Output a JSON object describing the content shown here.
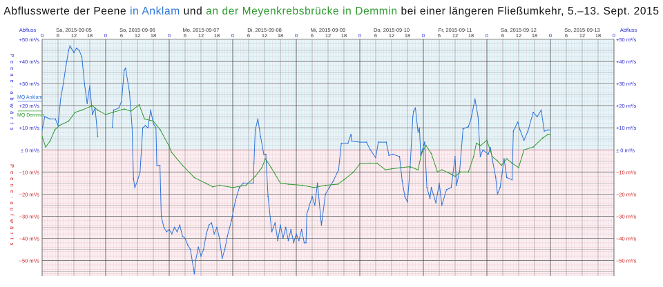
{
  "title": {
    "part1": "Abflusswerte der Peene ",
    "anklam": "in Anklam",
    "part2": " und ",
    "demmin": "an der Meyenkrebsbrücke in Demmin",
    "part3": " bei einer längeren Fließumkehr, 5.–13. Sept. 2015"
  },
  "chart_data": {
    "type": "line",
    "title": "Abflusswerte der Peene in Anklam und an der Meyenkrebsbrücke in Demmin bei einer längeren Fließumkehr, 5.–13. Sept. 2015",
    "ylabel_left": "Abfluss",
    "ylabel_right": "Abfluss",
    "side_label_positive": "Peene-abwärts",
    "side_label_negative": "Peene-aufwärts",
    "xlim": [
      "2015-09-05T00:00",
      "2015-09-14T00:00"
    ],
    "ylim": [
      -57,
      50
    ],
    "unit": "m³/s",
    "grid": true,
    "day_labels": [
      "Sa, 2015-09-05",
      "So, 2015-09-06",
      "Mo, 2015-09-07",
      "Di, 2015-09-08",
      "Mi, 2015-09-09",
      "Do, 2015-09-10",
      "Fr, 2015-09-11",
      "Sa, 2015-09-12",
      "So, 2015-09-13"
    ],
    "hour_ticks": [
      "0",
      "6",
      "12",
      "18"
    ],
    "y_ticks": [
      {
        "v": 50,
        "label": "+50 m³/s"
      },
      {
        "v": 40,
        "label": "+40 m³/s"
      },
      {
        "v": 30,
        "label": "+30 m³/s"
      },
      {
        "v": 20,
        "label": "+20 m³/s"
      },
      {
        "v": 10,
        "label": "+10 m³/s"
      },
      {
        "v": 0,
        "label": "± 0 m³/s"
      },
      {
        "v": -10,
        "label": "−10 m³/s"
      },
      {
        "v": -20,
        "label": "−20 m³/s"
      },
      {
        "v": -30,
        "label": "−30 m³/s"
      },
      {
        "v": -40,
        "label": "−40 m³/s"
      },
      {
        "v": -50,
        "label": "−50 m³/s"
      }
    ],
    "reference_lines": [
      {
        "name": "MQ Anklam",
        "value": 22,
        "color": "#2a72d8"
      },
      {
        "name": "MQ Demmin",
        "value": 17.6,
        "color": "#2e9a2e"
      }
    ],
    "colors": {
      "positive_bg": "#e8f5f9",
      "negative_bg": "#fdeef1",
      "positive_text": "#2a2ad0",
      "negative_text": "#d02020"
    },
    "series": [
      {
        "name": "Anklam",
        "color": "#2a72d8",
        "points": [
          [
            "2015-09-05T00:00",
            9
          ],
          [
            "2015-09-05T01:00",
            15
          ],
          [
            "2015-09-05T03:00",
            14
          ],
          [
            "2015-09-05T05:00",
            14
          ],
          [
            "2015-09-05T06:00",
            11
          ],
          [
            "2015-09-05T07:00",
            23
          ],
          [
            "2015-09-05T08:00",
            30
          ],
          [
            "2015-09-05T09:00",
            38
          ],
          [
            "2015-09-05T10:00",
            45
          ],
          [
            "2015-09-05T10:30",
            47
          ],
          [
            "2015-09-05T11:00",
            46
          ],
          [
            "2015-09-05T12:00",
            44
          ],
          [
            "2015-09-05T13:00",
            46
          ],
          [
            "2015-09-05T14:00",
            45
          ],
          [
            "2015-09-05T15:00",
            42
          ],
          [
            "2015-09-05T16:00",
            30
          ],
          [
            "2015-09-05T17:00",
            21
          ],
          [
            "2015-09-05T18:00",
            29
          ],
          [
            "2015-09-05T19:00",
            16
          ],
          [
            "2015-09-05T20:00",
            19
          ],
          [
            "2015-09-05T21:00",
            6
          ],
          [
            "2015-09-06T00:00",
            null
          ],
          [
            "2015-09-06T02:30",
            10
          ],
          [
            "2015-09-06T03:00",
            18
          ],
          [
            "2015-09-06T05:00",
            19
          ],
          [
            "2015-09-06T06:00",
            22
          ],
          [
            "2015-09-06T07:00",
            36
          ],
          [
            "2015-09-06T07:30",
            37
          ],
          [
            "2015-09-06T09:00",
            26
          ],
          [
            "2015-09-06T10:00",
            10
          ],
          [
            "2015-09-06T10:30",
            -13
          ],
          [
            "2015-09-06T11:00",
            -17
          ],
          [
            "2015-09-06T12:00",
            -14
          ],
          [
            "2015-09-06T13:00",
            -10
          ],
          [
            "2015-09-06T14:00",
            10
          ],
          [
            "2015-09-06T15:00",
            11
          ],
          [
            "2015-09-06T16:00",
            10
          ],
          [
            "2015-09-06T17:00",
            18
          ],
          [
            "2015-09-06T18:00",
            12
          ],
          [
            "2015-09-06T19:00",
            10
          ],
          [
            "2015-09-06T19:20",
            -7
          ],
          [
            "2015-09-06T20:30",
            -7
          ],
          [
            "2015-09-06T21:00",
            -30
          ],
          [
            "2015-09-06T22:00",
            -35
          ],
          [
            "2015-09-06T23:00",
            -37
          ],
          [
            "2015-09-07T00:00",
            -36
          ],
          [
            "2015-09-07T01:00",
            -38
          ],
          [
            "2015-09-07T02:00",
            -35
          ],
          [
            "2015-09-07T03:00",
            -37
          ],
          [
            "2015-09-07T04:00",
            -34
          ],
          [
            "2015-09-07T05:00",
            -39
          ],
          [
            "2015-09-07T06:00",
            -40
          ],
          [
            "2015-09-07T07:00",
            -43
          ],
          [
            "2015-09-07T08:00",
            -45
          ],
          [
            "2015-09-07T09:30",
            -56
          ],
          [
            "2015-09-07T10:00",
            -50
          ],
          [
            "2015-09-07T11:00",
            -44
          ],
          [
            "2015-09-07T12:00",
            -48
          ],
          [
            "2015-09-07T13:00",
            -45
          ],
          [
            "2015-09-07T14:00",
            -38
          ],
          [
            "2015-09-07T15:00",
            -34
          ],
          [
            "2015-09-07T16:00",
            -33
          ],
          [
            "2015-09-07T17:00",
            -38
          ],
          [
            "2015-09-07T18:00",
            -35
          ],
          [
            "2015-09-07T19:00",
            -40
          ],
          [
            "2015-09-07T20:00",
            -49
          ],
          [
            "2015-09-07T21:00",
            -45
          ],
          [
            "2015-09-07T22:00",
            -39
          ],
          [
            "2015-09-07T23:30",
            -32
          ],
          [
            "2015-09-08T01:00",
            -23
          ],
          [
            "2015-09-08T02:30",
            -17
          ],
          [
            "2015-09-08T04:00",
            -15
          ],
          [
            "2015-09-08T06:00",
            -15
          ],
          [
            "2015-09-08T07:45",
            -15
          ],
          [
            "2015-09-08T08:00",
            -6
          ],
          [
            "2015-09-08T08:30",
            9
          ],
          [
            "2015-09-08T09:30",
            14
          ],
          [
            "2015-09-08T10:30",
            6
          ],
          [
            "2015-09-08T11:45",
            -2
          ],
          [
            "2015-09-08T12:30",
            -2
          ],
          [
            "2015-09-08T13:20",
            -21
          ],
          [
            "2015-09-08T14:45",
            -37
          ],
          [
            "2015-09-08T16:00",
            -33
          ],
          [
            "2015-09-08T17:00",
            -41
          ],
          [
            "2015-09-08T18:00",
            -34
          ],
          [
            "2015-09-08T19:00",
            -40
          ],
          [
            "2015-09-08T20:00",
            -35
          ],
          [
            "2015-09-08T21:00",
            -41
          ],
          [
            "2015-09-08T22:00",
            -36
          ],
          [
            "2015-09-08T23:00",
            -42
          ],
          [
            "2015-09-09T00:00",
            -38
          ],
          [
            "2015-09-09T01:00",
            -41
          ],
          [
            "2015-09-09T02:00",
            -36
          ],
          [
            "2015-09-09T03:00",
            -42
          ],
          [
            "2015-09-09T03:40",
            -42
          ],
          [
            "2015-09-09T04:00",
            -29
          ],
          [
            "2015-09-09T06:00",
            -21
          ],
          [
            "2015-09-09T07:00",
            -25
          ],
          [
            "2015-09-09T08:00",
            -15
          ],
          [
            "2015-09-09T09:30",
            -34
          ],
          [
            "2015-09-09T11:00",
            -20
          ],
          [
            "2015-09-09T12:30",
            -17
          ],
          [
            "2015-09-09T14:00",
            -14
          ],
          [
            "2015-09-09T16:00",
            -9
          ],
          [
            "2015-09-09T17:00",
            3
          ],
          [
            "2015-09-09T19:30",
            3
          ],
          [
            "2015-09-09T20:40",
            7
          ],
          [
            "2015-09-09T21:00",
            4
          ],
          [
            "2015-09-10T00:00",
            3.5
          ],
          [
            "2015-09-10T02:30",
            3.5
          ],
          [
            "2015-09-10T04:00",
            0
          ],
          [
            "2015-09-10T06:00",
            -3.5
          ],
          [
            "2015-09-10T07:00",
            3.5
          ],
          [
            "2015-09-10T10:00",
            3.5
          ],
          [
            "2015-09-10T11:00",
            -2.5
          ],
          [
            "2015-09-10T12:30",
            -2
          ],
          [
            "2015-09-10T15:00",
            -3
          ],
          [
            "2015-09-10T16:00",
            -14
          ],
          [
            "2015-09-10T17:00",
            -21
          ],
          [
            "2015-09-10T18:00",
            -23.6
          ],
          [
            "2015-09-10T19:00",
            -8
          ],
          [
            "2015-09-10T20:00",
            15
          ],
          [
            "2015-09-10T20:20",
            17.5
          ],
          [
            "2015-09-10T21:00",
            19
          ],
          [
            "2015-09-10T22:00",
            8
          ],
          [
            "2015-09-10T22:30",
            10
          ],
          [
            "2015-09-10T23:00",
            -2.5
          ],
          [
            "2015-09-11T00:30",
            3.5
          ],
          [
            "2015-09-11T01:20",
            -17
          ],
          [
            "2015-09-11T02:30",
            -22
          ],
          [
            "2015-09-11T03:00",
            -17
          ],
          [
            "2015-09-11T04:45",
            -24
          ],
          [
            "2015-09-11T06:00",
            -15
          ],
          [
            "2015-09-11T07:00",
            -25
          ],
          [
            "2015-09-11T08:45",
            -18
          ],
          [
            "2015-09-11T10:30",
            -17
          ],
          [
            "2015-09-11T12:00",
            -3
          ],
          [
            "2015-09-11T12:30",
            -16
          ],
          [
            "2015-09-11T13:40",
            -10
          ],
          [
            "2015-09-11T15:00",
            9.5
          ],
          [
            "2015-09-11T17:00",
            10.5
          ],
          [
            "2015-09-11T18:00",
            14
          ],
          [
            "2015-09-11T19:30",
            23
          ],
          [
            "2015-09-11T20:40",
            15
          ],
          [
            "2015-09-11T21:30",
            -3
          ],
          [
            "2015-09-11T22:30",
            0
          ],
          [
            "2015-09-12T00:30",
            -2
          ],
          [
            "2015-09-12T01:20",
            1
          ],
          [
            "2015-09-12T02:00",
            -4
          ],
          [
            "2015-09-12T03:20",
            -12.5
          ],
          [
            "2015-09-12T04:00",
            -20
          ],
          [
            "2015-09-12T05:00",
            -17
          ],
          [
            "2015-09-12T06:30",
            -4
          ],
          [
            "2015-09-12T07:30",
            -12.5
          ],
          [
            "2015-09-12T09:30",
            -13.5
          ],
          [
            "2015-09-12T10:00",
            8.5
          ],
          [
            "2015-09-12T11:40",
            12.6
          ],
          [
            "2015-09-12T12:30",
            9
          ],
          [
            "2015-09-12T14:00",
            4.4
          ],
          [
            "2015-09-12T15:30",
            8.5
          ],
          [
            "2015-09-12T17:30",
            17
          ],
          [
            "2015-09-12T19:00",
            15
          ],
          [
            "2015-09-12T20:30",
            18
          ],
          [
            "2015-09-12T21:40",
            8.5
          ],
          [
            "2015-09-12T23:00",
            9
          ],
          [
            "2015-09-13T00:00",
            9
          ]
        ]
      },
      {
        "name": "Demmin",
        "color": "#2e9a2e",
        "points": [
          [
            "2015-09-05T00:00",
            6
          ],
          [
            "2015-09-05T01:20",
            1.3
          ],
          [
            "2015-09-05T03:00",
            4
          ],
          [
            "2015-09-05T04:45",
            9
          ],
          [
            "2015-09-05T06:30",
            11
          ],
          [
            "2015-09-05T10:00",
            13
          ],
          [
            "2015-09-05T12:30",
            17
          ],
          [
            "2015-09-05T15:00",
            18
          ],
          [
            "2015-09-05T19:00",
            20
          ],
          [
            "2015-09-05T21:00",
            18
          ],
          [
            "2015-09-06T00:00",
            16
          ],
          [
            "2015-09-06T02:40",
            17
          ],
          [
            "2015-09-06T07:00",
            18.5
          ],
          [
            "2015-09-06T09:30",
            17.5
          ],
          [
            "2015-09-06T12:40",
            20.4
          ],
          [
            "2015-09-06T14:40",
            14
          ],
          [
            "2015-09-06T18:00",
            13
          ],
          [
            "2015-09-06T20:40",
            9
          ],
          [
            "2015-09-07T00:00",
            1.6
          ],
          [
            "2015-09-07T00:50",
            -1
          ],
          [
            "2015-09-07T05:00",
            -7
          ],
          [
            "2015-09-07T09:30",
            -12.5
          ],
          [
            "2015-09-07T13:40",
            -15
          ],
          [
            "2015-09-07T16:30",
            -16.7
          ],
          [
            "2015-09-07T19:00",
            -16
          ],
          [
            "2015-09-08T00:00",
            -17
          ],
          [
            "2015-09-08T05:00",
            -16
          ],
          [
            "2015-09-08T08:30",
            -12
          ],
          [
            "2015-09-08T11:00",
            -8
          ],
          [
            "2015-09-08T12:20",
            -4
          ],
          [
            "2015-09-08T14:30",
            -8
          ],
          [
            "2015-09-08T18:00",
            -15
          ],
          [
            "2015-09-08T21:00",
            -15.5
          ],
          [
            "2015-09-09T02:20",
            -16
          ],
          [
            "2015-09-09T06:40",
            -17
          ],
          [
            "2015-09-09T11:00",
            -16
          ],
          [
            "2015-09-09T15:40",
            -15.5
          ],
          [
            "2015-09-09T18:00",
            -13.5
          ],
          [
            "2015-09-09T21:40",
            -10
          ],
          [
            "2015-09-10T00:00",
            -6.3
          ],
          [
            "2015-09-10T03:30",
            -6
          ],
          [
            "2015-09-10T06:30",
            -6
          ],
          [
            "2015-09-10T09:40",
            -9
          ],
          [
            "2015-09-10T12:00",
            -8.6
          ],
          [
            "2015-09-10T15:40",
            -8
          ],
          [
            "2015-09-10T19:00",
            -7.6
          ],
          [
            "2015-09-10T22:00",
            -9
          ],
          [
            "2015-09-10T23:20",
            -1.6
          ],
          [
            "2015-09-11T01:00",
            2
          ],
          [
            "2015-09-11T03:00",
            -1.6
          ],
          [
            "2015-09-11T05:20",
            -10
          ],
          [
            "2015-09-11T07:00",
            -9
          ],
          [
            "2015-09-11T10:30",
            -11
          ],
          [
            "2015-09-11T12:00",
            -12
          ],
          [
            "2015-09-11T14:00",
            -10
          ],
          [
            "2015-09-11T17:00",
            -10
          ],
          [
            "2015-09-11T19:00",
            -3
          ],
          [
            "2015-09-11T20:00",
            3
          ],
          [
            "2015-09-11T21:40",
            2
          ],
          [
            "2015-09-12T00:00",
            4.4
          ],
          [
            "2015-09-12T02:00",
            -3
          ],
          [
            "2015-09-12T04:00",
            -5
          ],
          [
            "2015-09-12T05:30",
            -7
          ],
          [
            "2015-09-12T07:30",
            -4
          ],
          [
            "2015-09-12T09:30",
            -6
          ],
          [
            "2015-09-12T12:00",
            -8
          ],
          [
            "2015-09-12T14:00",
            0
          ],
          [
            "2015-09-12T17:30",
            1.3
          ],
          [
            "2015-09-12T21:00",
            5.3
          ],
          [
            "2015-09-12T23:00",
            7
          ],
          [
            "2015-09-13T00:00",
            7
          ]
        ]
      }
    ]
  }
}
